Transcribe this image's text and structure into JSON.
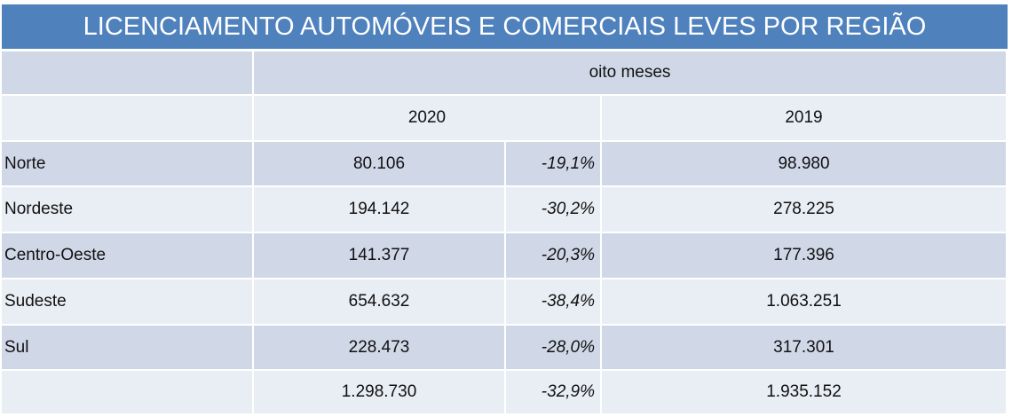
{
  "header": {
    "title": "LICENCIAMENTO AUTOMÓVEIS E COMERCIAIS LEVES POR REGIÃO"
  },
  "table": {
    "group_header": "oito meses",
    "years": [
      "2020",
      "2019"
    ],
    "rows": [
      [
        "Norte",
        "80.106",
        "-19,1%",
        "98.980"
      ],
      [
        "Nordeste",
        "194.142",
        "-30,2%",
        "278.225"
      ],
      [
        "Centro-Oeste",
        "141.377",
        "-20,3%",
        "177.396"
      ],
      [
        "Sudeste",
        "654.632",
        "-38,4%",
        "1.063.251"
      ],
      [
        "Sul",
        "228.473",
        "-28,0%",
        "317.301"
      ]
    ],
    "total": [
      "1.298.730",
      "-32,9%",
      "1.935.152"
    ]
  }
}
